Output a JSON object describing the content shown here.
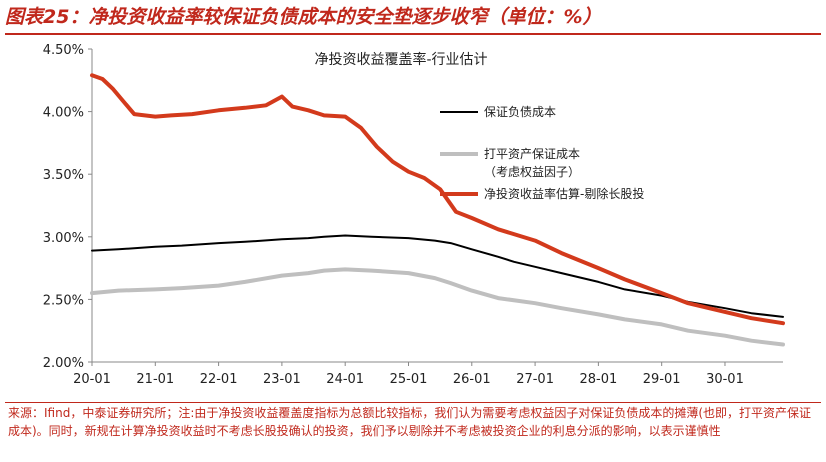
{
  "figure": {
    "title": "图表25：净投资收益率较保证负债成本的安全垫逐步收窄（单位：%）",
    "source_note": "来源：Ifind，中泰证券研究所；注:由于净投资收益覆盖度指标为总额比较指标，我们认为需要考虑权益因子对保证负债成本的摊薄(也即，打平资产保证成本)。同时，新规在计算净投资收益时不考虑长股投确认的投资，我们予以剔除并不考虑被投资企业的利息分派的影响，以表示谨慎性"
  },
  "chart_data": {
    "type": "line",
    "title": "净投资收益覆盖率-行业估计",
    "xlabel": "",
    "ylabel": "",
    "x_tick_labels": [
      "20-01",
      "21-01",
      "22-01",
      "23-01",
      "24-01",
      "25-01",
      "26-01",
      "27-01",
      "28-01",
      "29-01",
      "30-01"
    ],
    "y_tick_labels": [
      "2.00%",
      "2.50%",
      "3.00%",
      "3.50%",
      "4.00%",
      "4.50%"
    ],
    "ylim": [
      2.0,
      4.5
    ],
    "x_range": [
      "2020-01",
      "2030-12"
    ],
    "grid": false,
    "legend_position": "center-right",
    "series": [
      {
        "name": "保证负债成本",
        "color": "#000000",
        "points": [
          [
            "2020-01",
            2.89
          ],
          [
            "2020-06",
            2.9
          ],
          [
            "2021-01",
            2.92
          ],
          [
            "2021-06",
            2.93
          ],
          [
            "2022-01",
            2.95
          ],
          [
            "2022-06",
            2.96
          ],
          [
            "2023-01",
            2.98
          ],
          [
            "2023-06",
            2.99
          ],
          [
            "2023-09",
            3.0
          ],
          [
            "2024-01",
            3.01
          ],
          [
            "2024-06",
            3.0
          ],
          [
            "2025-01",
            2.99
          ],
          [
            "2025-06",
            2.97
          ],
          [
            "2025-09",
            2.95
          ],
          [
            "2026-01",
            2.9
          ],
          [
            "2026-06",
            2.84
          ],
          [
            "2026-09",
            2.8
          ],
          [
            "2027-01",
            2.76
          ],
          [
            "2027-06",
            2.71
          ],
          [
            "2028-01",
            2.64
          ],
          [
            "2028-06",
            2.58
          ],
          [
            "2029-01",
            2.53
          ],
          [
            "2029-06",
            2.48
          ],
          [
            "2030-01",
            2.43
          ],
          [
            "2030-06",
            2.39
          ],
          [
            "2030-12",
            2.36
          ]
        ]
      },
      {
        "name": "打平资产保证成本（考虑权益因子）",
        "legend_lines": [
          "打平资产保证成本",
          "（考虑权益因子）"
        ],
        "color": "#bfbfbf",
        "points": [
          [
            "2020-01",
            2.55
          ],
          [
            "2020-06",
            2.57
          ],
          [
            "2021-01",
            2.58
          ],
          [
            "2021-06",
            2.59
          ],
          [
            "2022-01",
            2.61
          ],
          [
            "2022-06",
            2.64
          ],
          [
            "2023-01",
            2.69
          ],
          [
            "2023-06",
            2.71
          ],
          [
            "2023-09",
            2.73
          ],
          [
            "2024-01",
            2.74
          ],
          [
            "2024-06",
            2.73
          ],
          [
            "2025-01",
            2.71
          ],
          [
            "2025-06",
            2.67
          ],
          [
            "2025-09",
            2.63
          ],
          [
            "2026-01",
            2.57
          ],
          [
            "2026-06",
            2.51
          ],
          [
            "2027-01",
            2.47
          ],
          [
            "2027-06",
            2.43
          ],
          [
            "2028-01",
            2.38
          ],
          [
            "2028-06",
            2.34
          ],
          [
            "2029-01",
            2.3
          ],
          [
            "2029-06",
            2.25
          ],
          [
            "2030-01",
            2.21
          ],
          [
            "2030-06",
            2.17
          ],
          [
            "2030-12",
            2.14
          ]
        ]
      },
      {
        "name": "净投资收益率估算-剔除长股投",
        "color": "#d33a1c",
        "points": [
          [
            "2020-01",
            4.29
          ],
          [
            "2020-03",
            4.26
          ],
          [
            "2020-05",
            4.18
          ],
          [
            "2020-07",
            4.08
          ],
          [
            "2020-09",
            3.98
          ],
          [
            "2021-01",
            3.96
          ],
          [
            "2021-04",
            3.97
          ],
          [
            "2021-08",
            3.98
          ],
          [
            "2022-01",
            4.01
          ],
          [
            "2022-06",
            4.03
          ],
          [
            "2022-10",
            4.05
          ],
          [
            "2023-01",
            4.12
          ],
          [
            "2023-03",
            4.04
          ],
          [
            "2023-06",
            4.01
          ],
          [
            "2023-09",
            3.97
          ],
          [
            "2024-01",
            3.96
          ],
          [
            "2024-04",
            3.87
          ],
          [
            "2024-07",
            3.72
          ],
          [
            "2024-10",
            3.6
          ],
          [
            "2025-01",
            3.52
          ],
          [
            "2025-04",
            3.47
          ],
          [
            "2025-07",
            3.38
          ],
          [
            "2025-10",
            3.2
          ],
          [
            "2026-01",
            3.15
          ],
          [
            "2026-06",
            3.06
          ],
          [
            "2027-01",
            2.97
          ],
          [
            "2027-06",
            2.87
          ],
          [
            "2028-01",
            2.75
          ],
          [
            "2028-06",
            2.66
          ],
          [
            "2029-01",
            2.55
          ],
          [
            "2029-06",
            2.47
          ],
          [
            "2030-01",
            2.4
          ],
          [
            "2030-06",
            2.35
          ],
          [
            "2030-12",
            2.31
          ]
        ]
      }
    ]
  }
}
